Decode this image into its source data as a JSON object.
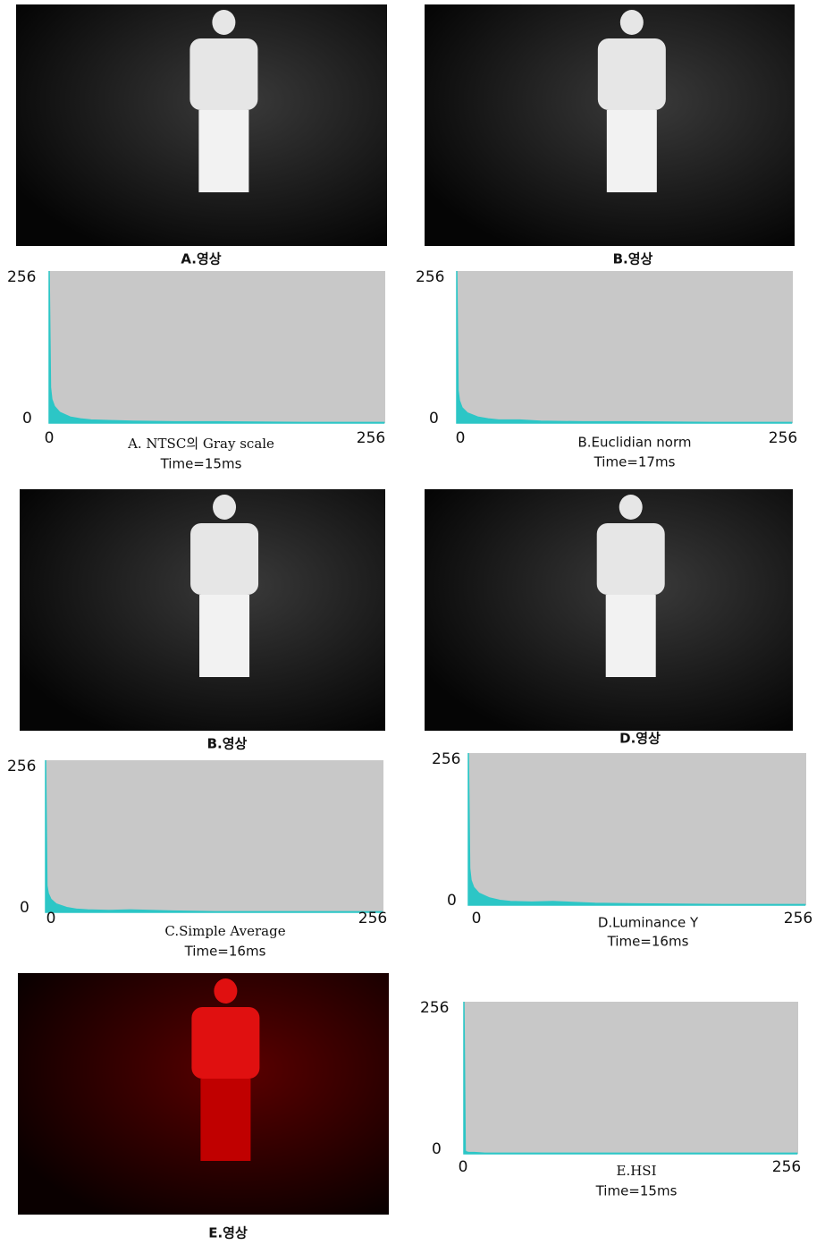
{
  "images": [
    {
      "caption": "A.영상"
    },
    {
      "caption": "B.영상"
    },
    {
      "caption": "B.영상"
    },
    {
      "caption": "D.영상"
    },
    {
      "caption": "E.영상"
    }
  ],
  "chart_data": [
    {
      "type": "area",
      "title": "A. NTSC의 Gray scale",
      "subtitle": "Time=15ms",
      "color": "#2cc6c6",
      "background": "#c8c8c8",
      "x": [
        0,
        1,
        2,
        4,
        8,
        16,
        24,
        32,
        48,
        64,
        96,
        128,
        192,
        255
      ],
      "values": [
        256,
        60,
        40,
        28,
        18,
        10,
        7,
        5,
        4,
        3,
        2,
        2,
        1,
        1
      ],
      "xlim": [
        0,
        256
      ],
      "ylim": [
        0,
        256
      ],
      "xticks": [
        0,
        256
      ],
      "yticks": [
        0,
        256
      ]
    },
    {
      "type": "area",
      "title": "B.Euclidian norm",
      "subtitle": "Time=17ms",
      "color": "#2cc6c6",
      "background": "#c8c8c8",
      "x": [
        0,
        1,
        2,
        4,
        8,
        16,
        24,
        32,
        48,
        64,
        96,
        128,
        192,
        255
      ],
      "values": [
        256,
        55,
        38,
        26,
        17,
        10,
        7,
        5,
        5,
        3,
        2,
        2,
        1,
        1
      ],
      "xlim": [
        0,
        256
      ],
      "ylim": [
        0,
        256
      ],
      "xticks": [
        0,
        256
      ],
      "yticks": [
        0,
        256
      ]
    },
    {
      "type": "area",
      "title": "C.Simple Average",
      "subtitle": "Time=16ms",
      "color": "#2cc6c6",
      "background": "#c8c8c8",
      "x": [
        0,
        1,
        2,
        4,
        8,
        16,
        24,
        32,
        48,
        64,
        96,
        128,
        192,
        255
      ],
      "values": [
        256,
        45,
        32,
        22,
        14,
        8,
        5,
        4,
        3,
        4,
        2,
        1,
        1,
        1
      ],
      "xlim": [
        0,
        256
      ],
      "ylim": [
        0,
        256
      ],
      "xticks": [
        0,
        256
      ],
      "yticks": [
        0,
        256
      ]
    },
    {
      "type": "area",
      "title": "D.Luminance Y",
      "subtitle": "Time=16ms",
      "color": "#2cc6c6",
      "background": "#c8c8c8",
      "x": [
        0,
        1,
        2,
        4,
        8,
        16,
        24,
        32,
        48,
        64,
        96,
        128,
        192,
        255
      ],
      "values": [
        256,
        62,
        42,
        30,
        20,
        12,
        8,
        6,
        5,
        6,
        3,
        2,
        1,
        1
      ],
      "xlim": [
        0,
        256
      ],
      "ylim": [
        0,
        256
      ],
      "xticks": [
        0,
        256
      ],
      "yticks": [
        0,
        256
      ]
    },
    {
      "type": "area",
      "title": "E.HSI",
      "subtitle": "Time=15ms",
      "color": "#2cc6c6",
      "background": "#c8c8c8",
      "x": [
        0,
        1,
        2,
        4,
        8,
        16,
        32,
        64,
        128,
        255
      ],
      "values": [
        256,
        5,
        3,
        2,
        2,
        1,
        1,
        1,
        1,
        1
      ],
      "xlim": [
        0,
        256
      ],
      "ylim": [
        0,
        256
      ],
      "xticks": [
        0,
        256
      ],
      "yticks": [
        0,
        256
      ]
    }
  ]
}
